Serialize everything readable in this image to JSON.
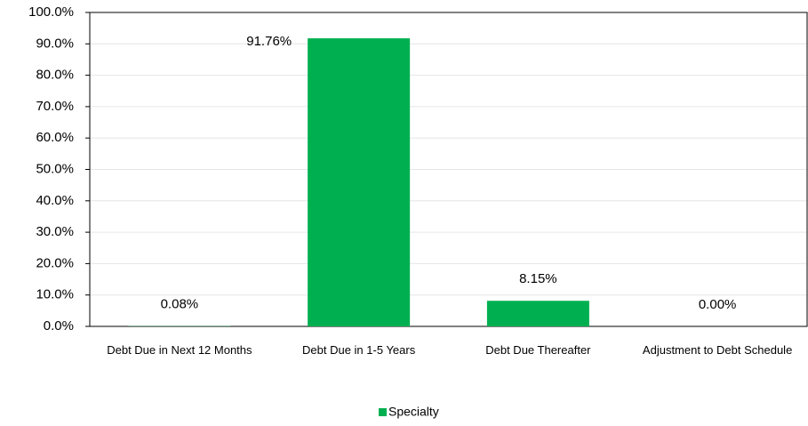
{
  "chart_data": {
    "type": "bar",
    "categories": [
      "Debt Due in Next 12 Months",
      "Debt Due in 1-5 Years",
      "Debt Due Thereafter",
      "Adjustment to Debt Schedule"
    ],
    "series": [
      {
        "name": "Specialty",
        "color": "#00b050",
        "values": [
          0.08,
          91.76,
          8.15,
          0.0
        ],
        "value_labels": [
          "0.08%",
          "91.76%",
          "8.15%",
          "0.00%"
        ]
      }
    ],
    "ylim": [
      0,
      100
    ],
    "yticks": [
      {
        "value": 0,
        "label": "0.0%"
      },
      {
        "value": 10,
        "label": "10.0%"
      },
      {
        "value": 20,
        "label": "20.0%"
      },
      {
        "value": 30,
        "label": "30.0%"
      },
      {
        "value": 40,
        "label": "40.0%"
      },
      {
        "value": 50,
        "label": "50.0%"
      },
      {
        "value": 60,
        "label": "60.0%"
      },
      {
        "value": 70,
        "label": "70.0%"
      },
      {
        "value": 80,
        "label": "80.0%"
      },
      {
        "value": 90,
        "label": "90.0%"
      },
      {
        "value": 100,
        "label": "100.0%"
      }
    ],
    "grid": true,
    "legend": "bottom"
  }
}
